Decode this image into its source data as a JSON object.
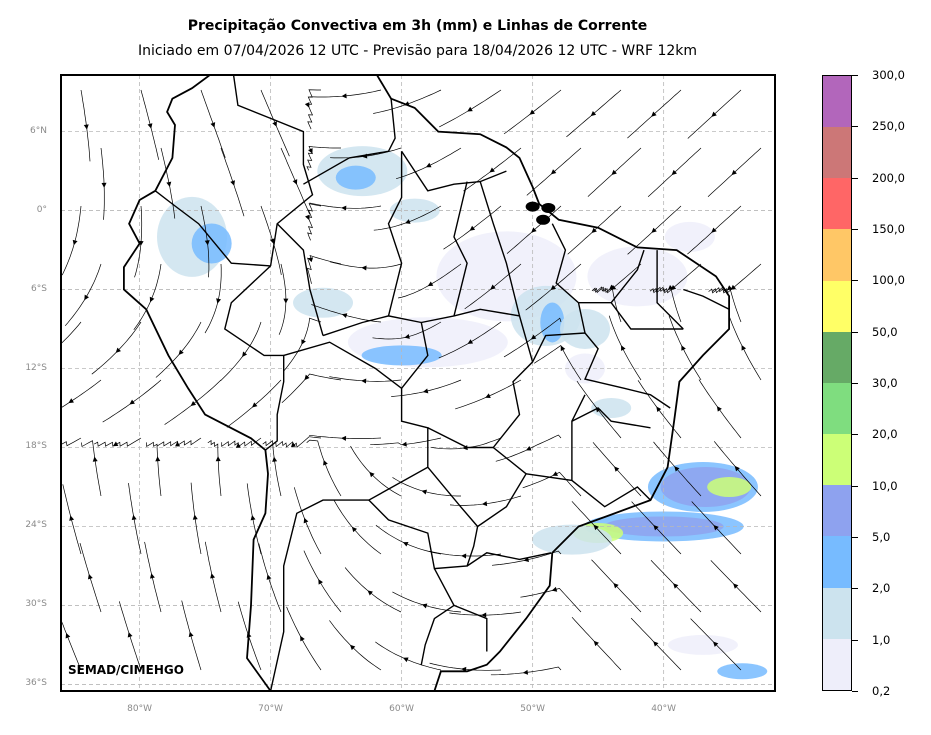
{
  "title": "Precipitação Convectiva em 3h (mm) e Linhas de Corrente",
  "subtitle": "Iniciado em 07/04/2026 12 UTC - Previsão para 18/04/2026 12 UTC - WRF 12km",
  "credit": "SEMAD/CIMEHGO",
  "lat_labels": [
    "6°N",
    "0°",
    "6°S",
    "12°S",
    "18°S",
    "24°S",
    "30°S",
    "36°S"
  ],
  "lat_values": [
    6,
    0,
    -6,
    -12,
    -18,
    -24,
    -30,
    -36
  ],
  "lon_labels": [
    "80°W",
    "70°W",
    "60°W",
    "50°W",
    "40°W"
  ],
  "lon_values": [
    -80,
    -70,
    -60,
    -50,
    -40
  ],
  "extent": {
    "lon_min": -86,
    "lon_max": -31.5,
    "lat_min": -36.5,
    "lat_max": 10.3
  },
  "colorbar": {
    "labels": [
      "0,2",
      "1,0",
      "2,0",
      "5,0",
      "10,0",
      "20,0",
      "30,0",
      "50,0",
      "100,0",
      "150,0",
      "200,0",
      "250,0",
      "300,0"
    ],
    "colors": [
      "#eeeefa",
      "#cce3ee",
      "#77bbff",
      "#8ea2ef",
      "#ccff77",
      "#7fdd7f",
      "#66aa66",
      "#ffff66",
      "#ffc766",
      "#ff6666",
      "#cc7777",
      "#b266bb"
    ]
  },
  "colors": {
    "grid": "#b8b8b8",
    "border": "#000000",
    "streamline": "#000000"
  }
}
